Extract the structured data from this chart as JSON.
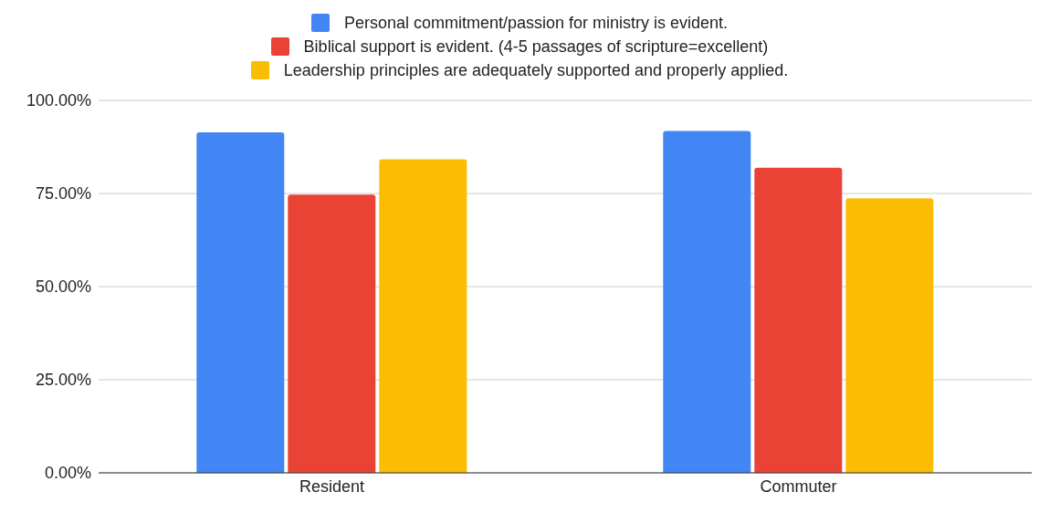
{
  "chart_data": {
    "type": "bar",
    "categories": [
      "Resident",
      "Commuter"
    ],
    "series": [
      {
        "name": "Personal commitment/passion for ministry is evident.",
        "color": "#4285f4",
        "values": [
          91.4,
          91.8
        ]
      },
      {
        "name": "Biblical support is evident. (4-5 passages of scripture=excellent)",
        "color": "#ea4335",
        "values": [
          74.7,
          81.9
        ]
      },
      {
        "name": "Leadership principles are adequately supported and properly applied.",
        "color": "#fbbc04",
        "values": [
          84.2,
          73.7
        ]
      }
    ],
    "ylim": [
      0,
      100
    ],
    "yticks": [
      {
        "value": 0,
        "label": "0.00%"
      },
      {
        "value": 25,
        "label": "25.00%"
      },
      {
        "value": 50,
        "label": "50.00%"
      },
      {
        "value": 75,
        "label": "75.00%"
      },
      {
        "value": 100,
        "label": "100.00%"
      }
    ],
    "grid": "y",
    "legend": "top"
  }
}
